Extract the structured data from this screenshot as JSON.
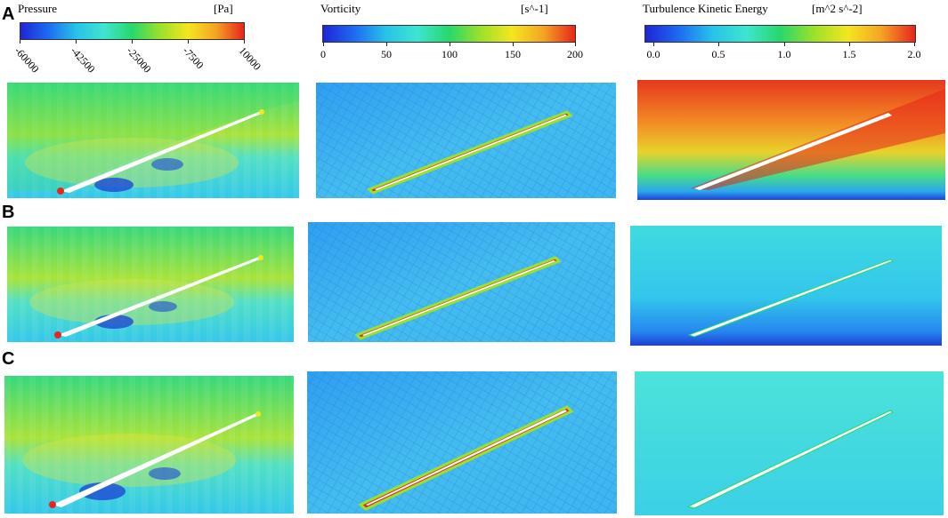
{
  "row_labels": [
    "A",
    "B",
    "C"
  ],
  "colorbars": [
    {
      "title": "Pressure",
      "unit": "[Pa]",
      "ticks": [
        "-60000",
        "-42500",
        "-25000",
        "-7500",
        "10000"
      ],
      "tick_style": "rotated"
    },
    {
      "title": "Vorticity",
      "unit": "[s^-1]",
      "ticks": [
        "0",
        "50",
        "100",
        "150",
        "200"
      ],
      "tick_style": "flat"
    },
    {
      "title": "Turbulence Kinetic Energy",
      "unit": "[m^2 s^-2]",
      "ticks": [
        "0.0",
        "0.5",
        "1.0",
        "1.5",
        "2.0"
      ],
      "tick_style": "flat"
    }
  ],
  "colormap": [
    "#1e25d6",
    "#1d6cf2",
    "#27c3e8",
    "#3ee5d0",
    "#27d86a",
    "#9be12a",
    "#f4e61f",
    "#f4a423",
    "#e8251c"
  ]
}
